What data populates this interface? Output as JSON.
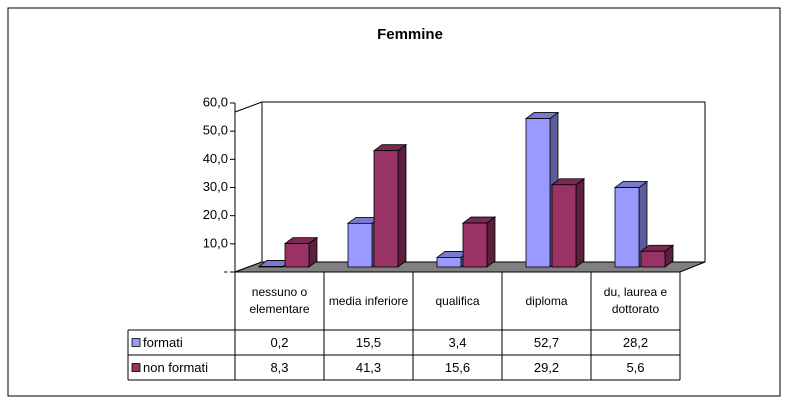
{
  "chart_data": {
    "type": "bar",
    "title": "Femmine",
    "categories": [
      "nessuno o elementare",
      "media inferiore",
      "qualifica",
      "diploma",
      "du, laurea e dottorato"
    ],
    "series": [
      {
        "name": "formati",
        "color": "#9999ff",
        "values": [
          0.2,
          15.5,
          3.4,
          52.7,
          28.2
        ],
        "value_labels": [
          "0,2",
          "15,5",
          "3,4",
          "52,7",
          "28,2"
        ]
      },
      {
        "name": "non formati",
        "color": "#993366",
        "values": [
          8.3,
          41.3,
          15.6,
          29.2,
          5.6
        ],
        "value_labels": [
          "8,3",
          "41,3",
          "15,6",
          "29,2",
          "5,6"
        ]
      }
    ],
    "ylim": [
      0,
      60
    ],
    "yticks": [
      {
        "value": 0,
        "label": "-"
      },
      {
        "value": 10,
        "label": "10,0"
      },
      {
        "value": 20,
        "label": "20,0"
      },
      {
        "value": 30,
        "label": "30,0"
      },
      {
        "value": 40,
        "label": "40,0"
      },
      {
        "value": 50,
        "label": "50,0"
      },
      {
        "value": 60,
        "label": "60,0"
      }
    ],
    "grid": false
  }
}
